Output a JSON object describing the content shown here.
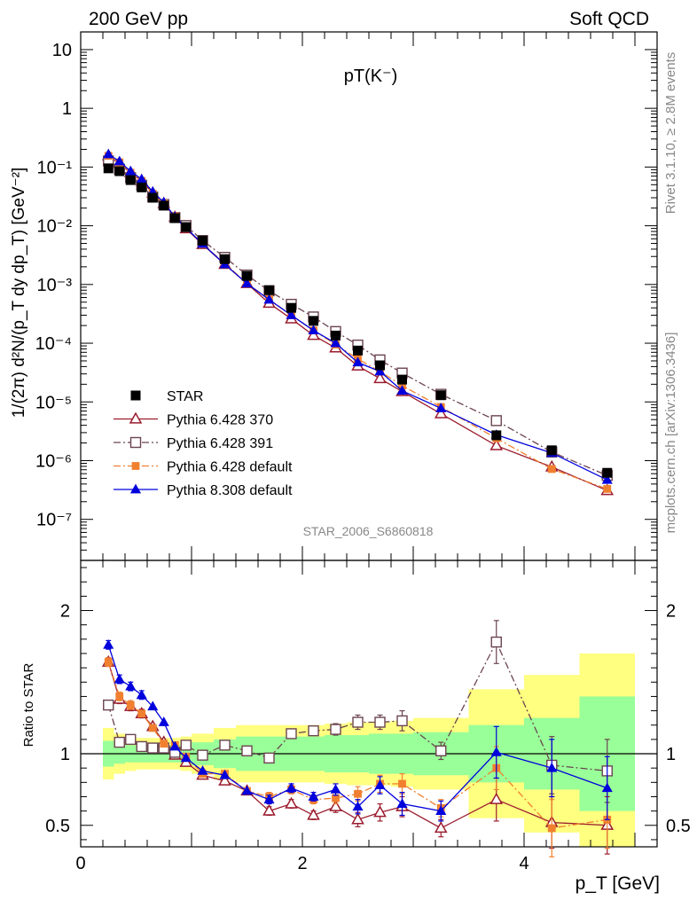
{
  "header": {
    "left": "200 GeV pp",
    "right": "Soft QCD",
    "side_top": "Rivet 3.1.10, ≥ 2.8M events",
    "side_bottom": "mcplots.cern.ch [arXiv:1306.3436]",
    "analysis": "STAR_2006_S6860818"
  },
  "chart_data": [
    {
      "type": "scatter",
      "panel": "main",
      "title": "pT(K⁻)",
      "ylabel": "1/(2π) d²N/(p_T dy dp_T) [GeV⁻²]",
      "xlabel": "",
      "yscale": "log",
      "xlim": [
        0,
        5.2
      ],
      "ylim": [
        2e-08,
        20
      ],
      "y_tick_labels": [
        "10",
        "1",
        "10⁻¹",
        "10⁻²",
        "10⁻³",
        "10⁻⁴",
        "10⁻⁵",
        "10⁻⁶",
        "10⁻⁷"
      ],
      "legend_position": "lower-left",
      "x": [
        0.25,
        0.35,
        0.45,
        0.55,
        0.65,
        0.75,
        0.85,
        0.95,
        1.1,
        1.3,
        1.5,
        1.7,
        1.9,
        2.1,
        2.3,
        2.5,
        2.7,
        2.9,
        3.25,
        3.75,
        4.25,
        4.75
      ],
      "series": [
        {
          "name": "STAR",
          "color": "#000000",
          "marker": "filled-square",
          "style": "none",
          "values": [
            0.095,
            0.085,
            0.06,
            0.045,
            0.03,
            0.022,
            0.0135,
            0.0095,
            0.0056,
            0.0027,
            0.0014,
            0.0008,
            0.0004,
            0.00024,
            0.000135,
            7.5e-05,
            4.2e-05,
            2.4e-05,
            1.3e-05,
            2.7e-06,
            1.5e-06,
            6.2e-07
          ]
        },
        {
          "name": "Pythia 6.428 370",
          "color": "#9b1c2e",
          "marker": "open-triangle",
          "style": "solid",
          "values": [
            0.155,
            0.115,
            0.08,
            0.058,
            0.036,
            0.024,
            0.014,
            0.0089,
            0.0048,
            0.0022,
            0.00104,
            0.00048,
            0.00026,
            0.000136,
            8.3e-05,
            4.1e-05,
            2.5e-05,
            1.5e-05,
            6.3e-06,
            1.8e-06,
            7.8e-07,
            3.1e-07
          ]
        },
        {
          "name": "Pythia 6.428 391",
          "color": "#6b4450",
          "marker": "open-square",
          "style": "dashdot",
          "values": [
            0.127,
            0.092,
            0.066,
            0.049,
            0.031,
            0.023,
            0.0138,
            0.0101,
            0.0056,
            0.0029,
            0.00145,
            0.00078,
            0.00046,
            0.00028,
            0.000158,
            9.3e-05,
            5.2e-05,
            3.1e-05,
            1.35e-05,
            4.8e-06,
            1.4e-06,
            5.6e-07
          ]
        },
        {
          "name": "Pythia 6.428 default",
          "color": "#f08030",
          "marker": "filled-square-small",
          "style": "dashdot",
          "values": [
            0.155,
            0.12,
            0.08,
            0.058,
            0.035,
            0.024,
            0.0145,
            0.0092,
            0.0048,
            0.0023,
            0.00104,
            0.00056,
            0.0003,
            0.000165,
            9.5e-05,
            5.4e-05,
            3.3e-05,
            1.9e-05,
            8.2e-06,
            2.4e-06,
            7.2e-07,
            3.3e-07
          ]
        },
        {
          "name": "Pythia 8.308 default",
          "color": "#0000dd",
          "marker": "filled-triangle",
          "style": "solid",
          "values": [
            0.165,
            0.125,
            0.085,
            0.062,
            0.038,
            0.025,
            0.0142,
            0.0092,
            0.0049,
            0.0022,
            0.00104,
            0.00055,
            0.0003,
            0.000165,
            0.0001,
            4.7e-05,
            3.3e-05,
            1.55e-05,
            7.8e-06,
            2.75e-06,
            1.35e-06,
            4.7e-07
          ]
        }
      ]
    },
    {
      "type": "scatter",
      "panel": "ratio",
      "ylabel": "Ratio to STAR",
      "xlabel": "p_T [GeV]",
      "xlim": [
        0,
        5.2
      ],
      "ylim": [
        0.35,
        2.35
      ],
      "x_ticks": [
        0,
        2,
        4
      ],
      "y_ticks": [
        0.5,
        1,
        2
      ],
      "reference_line": 1,
      "band_edges": [
        0.2,
        0.3,
        0.4,
        0.5,
        0.6,
        0.7,
        0.8,
        0.9,
        1.0,
        1.2,
        1.4,
        1.6,
        1.8,
        2.0,
        2.2,
        2.4,
        2.6,
        2.8,
        3.0,
        3.5,
        4.0,
        4.5,
        5.0
      ],
      "band_inner": [
        0.09,
        0.07,
        0.06,
        0.06,
        0.06,
        0.06,
        0.06,
        0.07,
        0.08,
        0.1,
        0.12,
        0.12,
        0.12,
        0.12,
        0.13,
        0.13,
        0.14,
        0.14,
        0.15,
        0.2,
        0.25,
        0.4
      ],
      "band_outer": [
        0.18,
        0.14,
        0.12,
        0.11,
        0.11,
        0.11,
        0.11,
        0.12,
        0.14,
        0.18,
        0.2,
        0.2,
        0.2,
        0.2,
        0.21,
        0.22,
        0.22,
        0.23,
        0.25,
        0.45,
        0.55,
        0.7
      ],
      "x": [
        0.25,
        0.35,
        0.45,
        0.55,
        0.65,
        0.75,
        0.85,
        0.95,
        1.1,
        1.3,
        1.5,
        1.7,
        1.9,
        2.1,
        2.3,
        2.5,
        2.7,
        2.9,
        3.25,
        3.75,
        4.25,
        4.75
      ],
      "series": [
        {
          "name": "Pythia 6.428 370",
          "values": [
            1.64,
            1.38,
            1.33,
            1.28,
            1.19,
            1.08,
            0.99,
            0.94,
            0.85,
            0.81,
            0.74,
            0.6,
            0.65,
            0.57,
            0.63,
            0.54,
            0.59,
            0.63,
            0.48,
            0.68,
            0.52,
            0.5
          ],
          "errors": [
            0.03,
            0.03,
            0.03,
            0.03,
            0.02,
            0.02,
            0.02,
            0.02,
            0.02,
            0.02,
            0.02,
            0.03,
            0.03,
            0.03,
            0.04,
            0.05,
            0.06,
            0.07,
            0.06,
            0.15,
            0.18,
            0.2
          ]
        },
        {
          "name": "Pythia 6.428 391",
          "values": [
            1.34,
            1.08,
            1.1,
            1.05,
            1.04,
            1.04,
            1.01,
            1.06,
            0.99,
            1.06,
            1.02,
            0.97,
            1.14,
            1.16,
            1.17,
            1.22,
            1.22,
            1.23,
            1.02,
            1.78,
            0.92,
            0.88
          ],
          "errors": [
            0.02,
            0.02,
            0.02,
            0.02,
            0.02,
            0.02,
            0.02,
            0.02,
            0.02,
            0.02,
            0.02,
            0.03,
            0.03,
            0.03,
            0.04,
            0.05,
            0.05,
            0.07,
            0.06,
            0.15,
            0.2,
            0.22
          ]
        },
        {
          "name": "Pythia 6.428 default",
          "values": [
            1.64,
            1.4,
            1.34,
            1.28,
            1.18,
            1.07,
            1.06,
            0.98,
            0.86,
            0.86,
            0.74,
            0.7,
            0.75,
            0.68,
            0.69,
            0.72,
            0.79,
            0.79,
            0.62,
            0.9,
            0.48,
            0.54
          ],
          "errors": [
            0.03,
            0.03,
            0.03,
            0.02,
            0.02,
            0.02,
            0.02,
            0.02,
            0.02,
            0.02,
            0.02,
            0.03,
            0.03,
            0.03,
            0.04,
            0.05,
            0.06,
            0.07,
            0.06,
            0.15,
            0.2,
            0.2
          ]
        },
        {
          "name": "Pythia 8.308 default",
          "values": [
            1.76,
            1.52,
            1.47,
            1.41,
            1.33,
            1.22,
            1.05,
            0.97,
            0.88,
            0.85,
            0.74,
            0.68,
            0.76,
            0.7,
            0.75,
            0.63,
            0.78,
            0.65,
            0.6,
            1.01,
            0.9,
            0.76
          ],
          "errors": [
            0.03,
            0.03,
            0.03,
            0.03,
            0.02,
            0.02,
            0.02,
            0.02,
            0.02,
            0.02,
            0.02,
            0.03,
            0.03,
            0.03,
            0.04,
            0.05,
            0.06,
            0.08,
            0.07,
            0.18,
            0.2,
            0.22
          ]
        }
      ]
    }
  ]
}
